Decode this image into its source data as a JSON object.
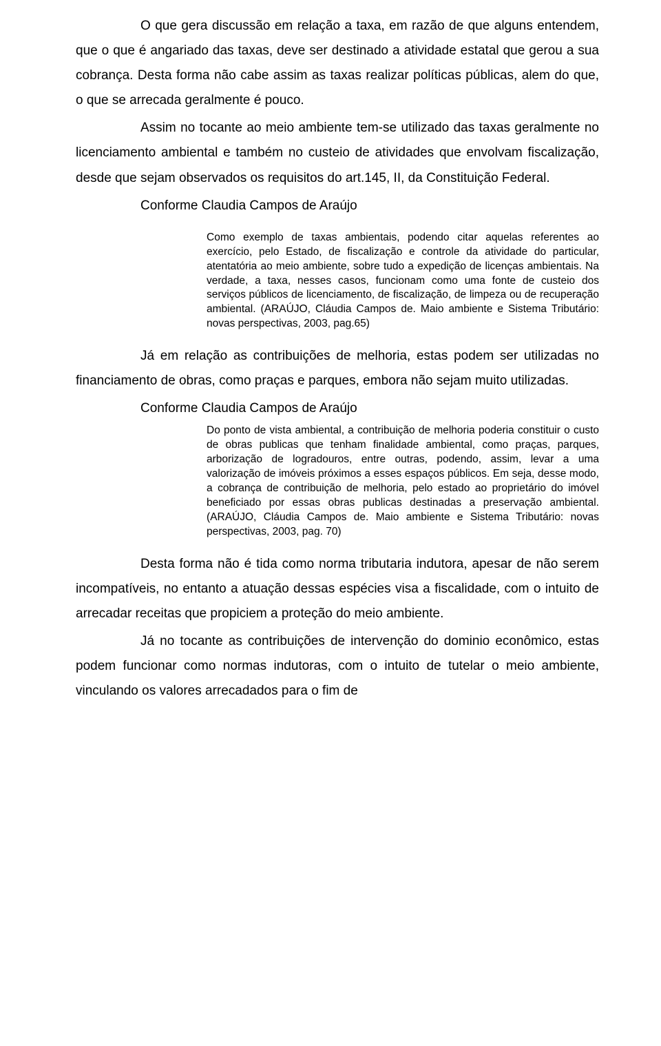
{
  "paragraphs": {
    "p1": "O que gera discussão em relação a taxa, em razão de que alguns entendem, que o que é angariado das taxas, deve ser destinado a atividade estatal que gerou a sua cobrança. Desta forma não cabe assim as taxas realizar políticas  públicas, alem do que, o que se arrecada geralmente é pouco.",
    "p2": "Assim no tocante ao meio ambiente tem-se utilizado das taxas geralmente no licenciamento ambiental e também no custeio de atividades que envolvam fiscalização, desde que sejam observados os requisitos do art.145, II, da Constituição Federal.",
    "p3": "Conforme Claudia Campos de Araújo",
    "p4": "Já em relação as contribuições de melhoria, estas podem ser utilizadas no financiamento de obras, como praças e parques, embora não sejam muito utilizadas.",
    "p5": "Conforme Claudia Campos de Araújo",
    "p6": "Desta forma não é tida como norma tributaria indutora, apesar de não serem incompatíveis, no entanto a atuação dessas espécies visa a fiscalidade, com o intuito de arrecadar receitas que propiciem a proteção do meio ambiente.",
    "p7": "Já no tocante as contribuições de intervenção do dominio econômico, estas podem funcionar como normas indutoras, com o intuito de tutelar o meio ambiente, vinculando os valores arrecadados para o fim de"
  },
  "quotes": {
    "q1": "Como exemplo de taxas ambientais, podendo citar aquelas referentes ao exercício, pelo Estado, de fiscalização e controle da atividade do particular, atentatória ao meio ambiente, sobre tudo a expedição de licenças ambientais. Na verdade, a taxa, nesses casos, funcionam como uma fonte de custeio dos serviços públicos de licenciamento, de fiscalização, de limpeza ou de recuperação ambiental. (ARAÚJO, Cláudia Campos de. Maio ambiente e Sistema Tributário: novas perspectivas, 2003, pag.65)",
    "q2": "Do ponto de vista ambiental, a contribuição de melhoria poderia constituir o custo de obras publicas que tenham finalidade ambiental, como praças, parques, arborização de logradouros, entre outras, podendo, assim, levar a uma valorização de imóveis próximos a esses espaços públicos. Em seja, desse modo, a cobrança de contribuição de melhoria, pelo estado ao proprietário do imóvel beneficiado por essas obras publicas destinadas a preservação ambiental. (ARAÚJO, Cláudia Campos de. Maio ambiente e Sistema Tributário: novas perspectivas, 2003, pag. 70)"
  }
}
